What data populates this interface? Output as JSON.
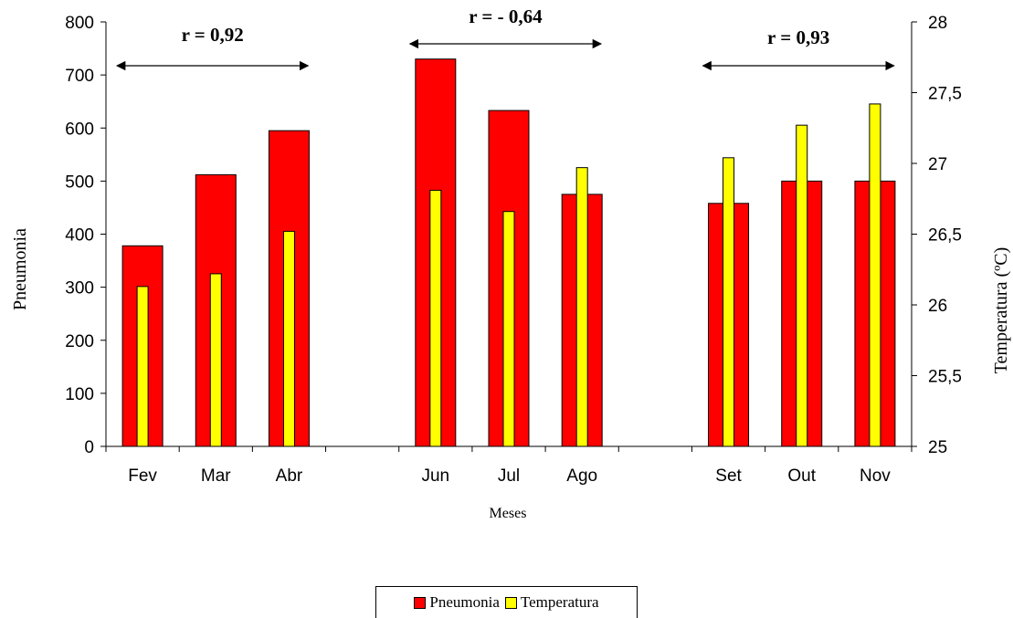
{
  "chart_data": {
    "type": "bar",
    "categories": [
      "Fev",
      "Mar",
      "Abr",
      "",
      "Jun",
      "Jul",
      "Ago",
      "",
      "Set",
      "Out",
      "Nov"
    ],
    "series": [
      {
        "name": "Pneumonia",
        "axis": "left",
        "color": "#ff0000",
        "values": [
          378,
          512,
          595,
          null,
          730,
          633,
          475,
          null,
          458,
          500,
          500
        ]
      },
      {
        "name": "Temperatura",
        "axis": "right",
        "color": "#ffff00",
        "values": [
          26.13,
          26.22,
          26.52,
          null,
          26.81,
          26.66,
          26.97,
          null,
          27.04,
          27.27,
          27.42
        ]
      }
    ],
    "xlabel": "Meses",
    "ylabel": "Pneumonia",
    "ylabel_right": "Temperatura (ºC)",
    "ylim": [
      0,
      800
    ],
    "yticks": [
      "0",
      "100",
      "200",
      "300",
      "400",
      "500",
      "600",
      "700",
      "800"
    ],
    "ylim_right": [
      25,
      28
    ],
    "yticks_right": [
      "25",
      "25,5",
      "26",
      "26,5",
      "27",
      "27,5",
      "28"
    ],
    "grid": false,
    "legend_placement": "bottom-center",
    "annotations": [
      {
        "text": "r = 0,92",
        "span": [
          "Fev",
          "Abr"
        ]
      },
      {
        "text": "r = - 0,64",
        "span": [
          "Jun",
          "Ago"
        ]
      },
      {
        "text": "r = 0,93",
        "span": [
          "Set",
          "Nov"
        ]
      }
    ]
  }
}
